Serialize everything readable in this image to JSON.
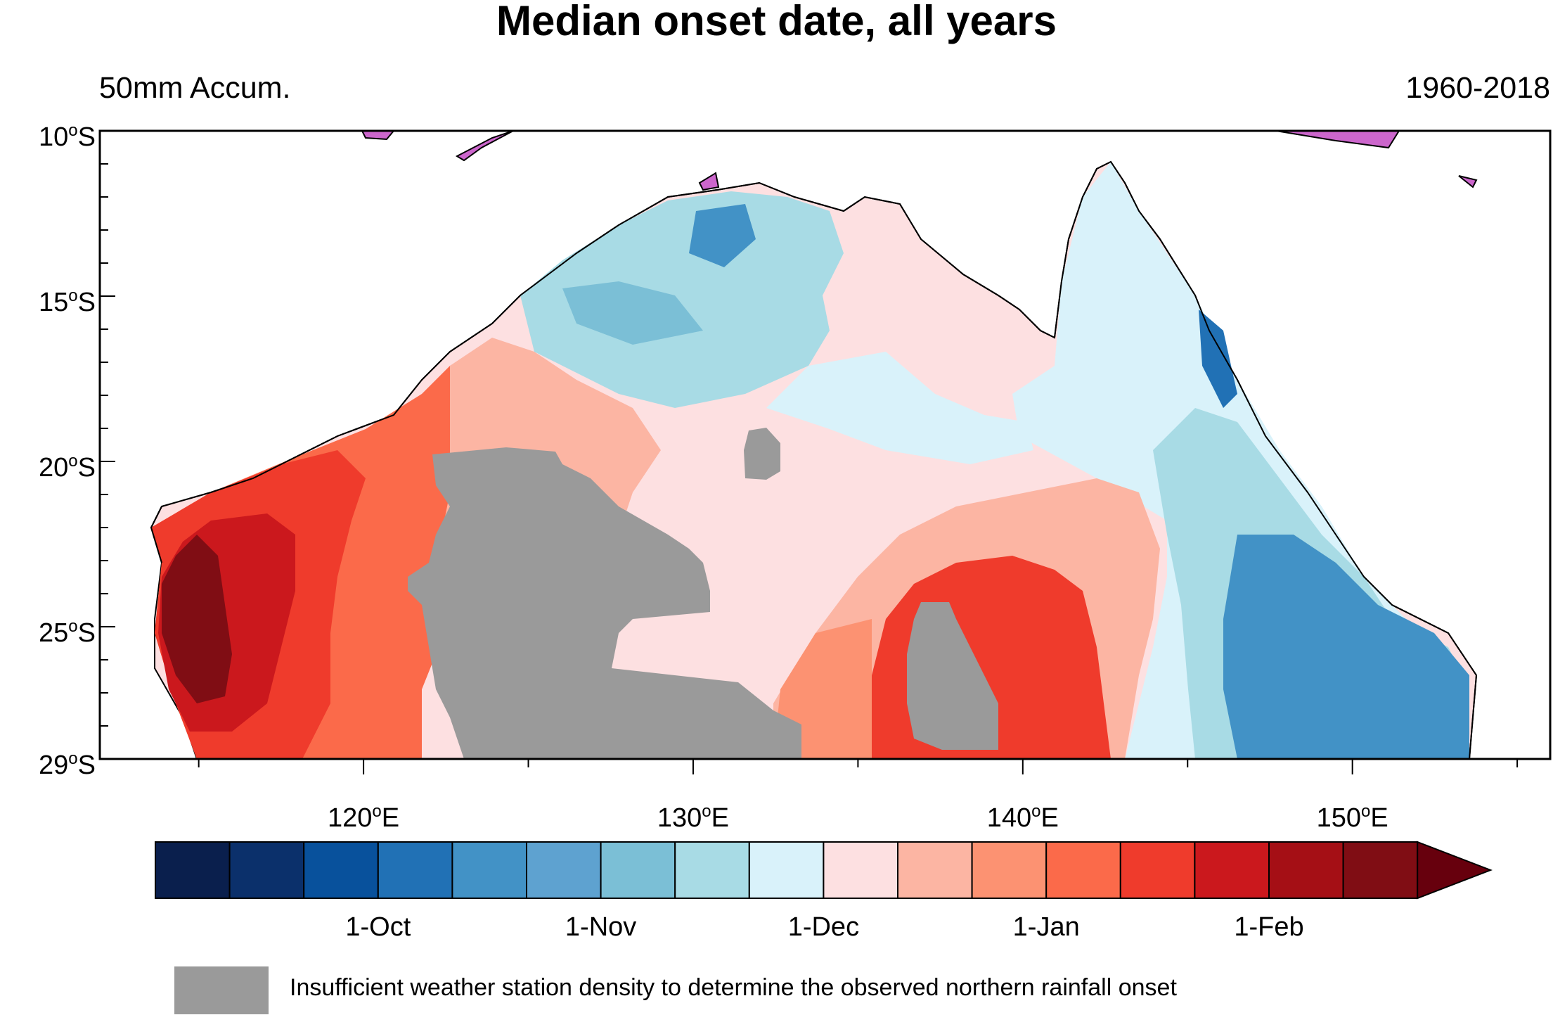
{
  "title": "Median onset date, all years",
  "subtitle_left": "50mm Accum.",
  "subtitle_right": "1960-2018",
  "map": {
    "lat_labels": [
      {
        "deg": -10,
        "text": "10",
        "hemi": "S"
      },
      {
        "deg": -15,
        "text": "15",
        "hemi": "S"
      },
      {
        "deg": -20,
        "text": "20",
        "hemi": "S"
      },
      {
        "deg": -25,
        "text": "25",
        "hemi": "S"
      },
      {
        "deg": -29,
        "text": "29",
        "hemi": "S"
      }
    ],
    "lon_labels": [
      {
        "deg": 120,
        "text": "120",
        "hemi": "E"
      },
      {
        "deg": 130,
        "text": "130",
        "hemi": "E"
      },
      {
        "deg": 140,
        "text": "140",
        "hemi": "E"
      },
      {
        "deg": 150,
        "text": "150",
        "hemi": "E"
      }
    ],
    "extent": {
      "lon_min": 112,
      "lon_max": 156,
      "lat_min": -29,
      "lat_max": -10
    },
    "regions": [
      {
        "name": "kimberley-coast",
        "color": "#fbd3d4"
      },
      {
        "name": "top-end-interior",
        "color": "#a9dae6"
      },
      {
        "name": "west-pilbara",
        "color": "#a50f15"
      },
      {
        "name": "east-queensland",
        "color": "#4a90c8"
      }
    ],
    "land_mask_color": "#9a9a9a",
    "neighbour_land_color": "#cc66cc"
  },
  "colorbar": {
    "colors": [
      "#0a1f4d",
      "#0b306b",
      "#08519c",
      "#2171b5",
      "#4292c6",
      "#5ea2d0",
      "#7bbfd6",
      "#a8dbe5",
      "#d9f2fa",
      "#fde0e1",
      "#fcb5a3",
      "#fc9272",
      "#fb6a4a",
      "#ef3b2c",
      "#cb181d",
      "#a50f15",
      "#800d14"
    ],
    "arrow_color": "#67000d",
    "labels": [
      {
        "text": "1-Oct",
        "boundary": 3
      },
      {
        "text": "1-Nov",
        "boundary": 6
      },
      {
        "text": "1-Dec",
        "boundary": 9
      },
      {
        "text": "1-Jan",
        "boundary": 12
      },
      {
        "text": "1-Feb",
        "boundary": 15
      }
    ]
  },
  "legend": {
    "swatch_color": "#9a9a9a",
    "text": "Insufficient weather station density to determine the observed northern rainfall onset"
  }
}
